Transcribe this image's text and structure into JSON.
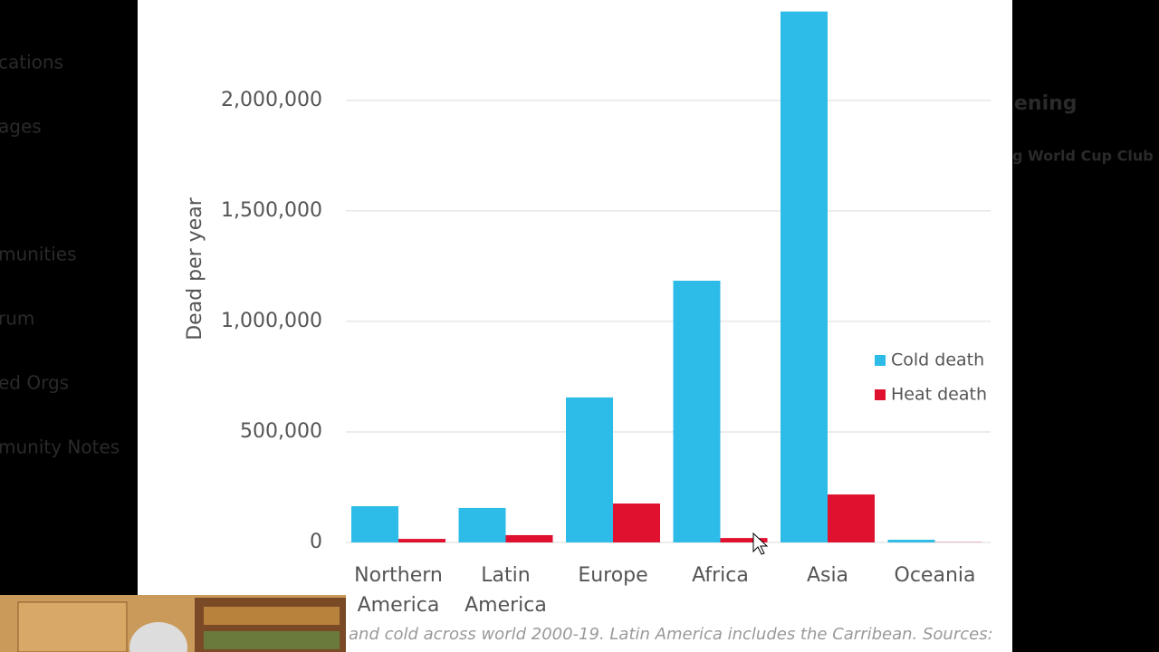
{
  "background": {
    "left_menu": [
      "cations",
      "ages",
      "munities",
      "rum",
      "ed Orgs",
      "munity Notes"
    ],
    "right_heading": "ening",
    "right_sub": "g World Cup Club"
  },
  "chart_data": {
    "type": "bar",
    "y_label": "Dead per year",
    "categories": [
      "Northern America",
      "Latin America",
      "Europe",
      "Africa",
      "Asia",
      "Oceania"
    ],
    "series": [
      {
        "name": "Cold death",
        "color": "#2dbbe8",
        "values": [
          164000,
          156000,
          656000,
          1184000,
          2402000,
          12000
        ]
      },
      {
        "name": "Heat death",
        "color": "#e0102f",
        "values": [
          16000,
          33000,
          176000,
          20000,
          217000,
          1000
        ]
      }
    ],
    "ylim": [
      0,
      2450000
    ],
    "yticks": [
      0,
      {
        "value": 500000,
        "label": "500,000"
      },
      {
        "value": 1000000,
        "label": "1,000,000"
      },
      {
        "value": 1500000,
        "label": "1,500,000"
      },
      {
        "value": 2000000,
        "label": "2,000,000"
      }
    ],
    "grid": true,
    "legend": "right",
    "caption": "and cold across world 2000-19. Latin America includes the Carribean. Sources:"
  }
}
